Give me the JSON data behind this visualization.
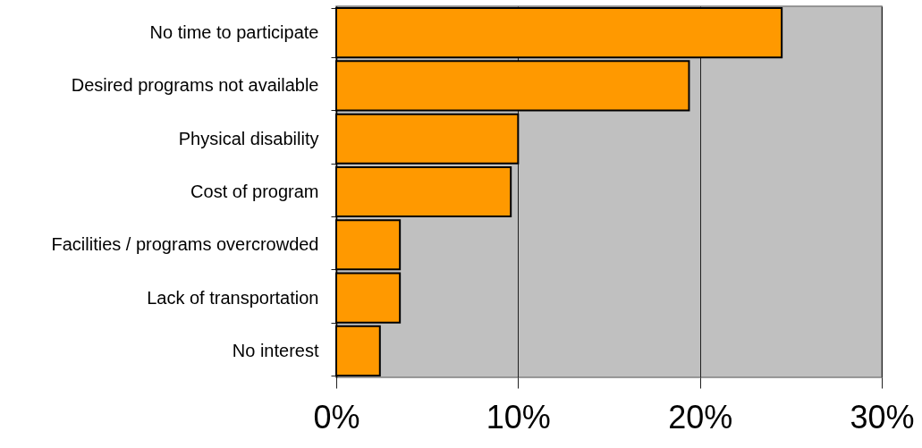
{
  "chart_data": {
    "type": "bar",
    "orientation": "horizontal",
    "categories": [
      "No time to participate",
      "Desired programs not available",
      "Physical disability",
      "Cost of program",
      "Facilities / programs overcrowded",
      "Lack of transportation",
      "No interest"
    ],
    "values": [
      24.5,
      19.4,
      10.0,
      9.6,
      3.5,
      3.5,
      2.4
    ],
    "color": "#ff9900",
    "xlim": [
      0,
      30
    ],
    "xticks": [
      {
        "value": 0,
        "label": "0%"
      },
      {
        "value": 10,
        "label": "10%"
      },
      {
        "value": 20,
        "label": "20%"
      },
      {
        "value": 30,
        "label": "30%"
      }
    ],
    "grid": "x"
  }
}
